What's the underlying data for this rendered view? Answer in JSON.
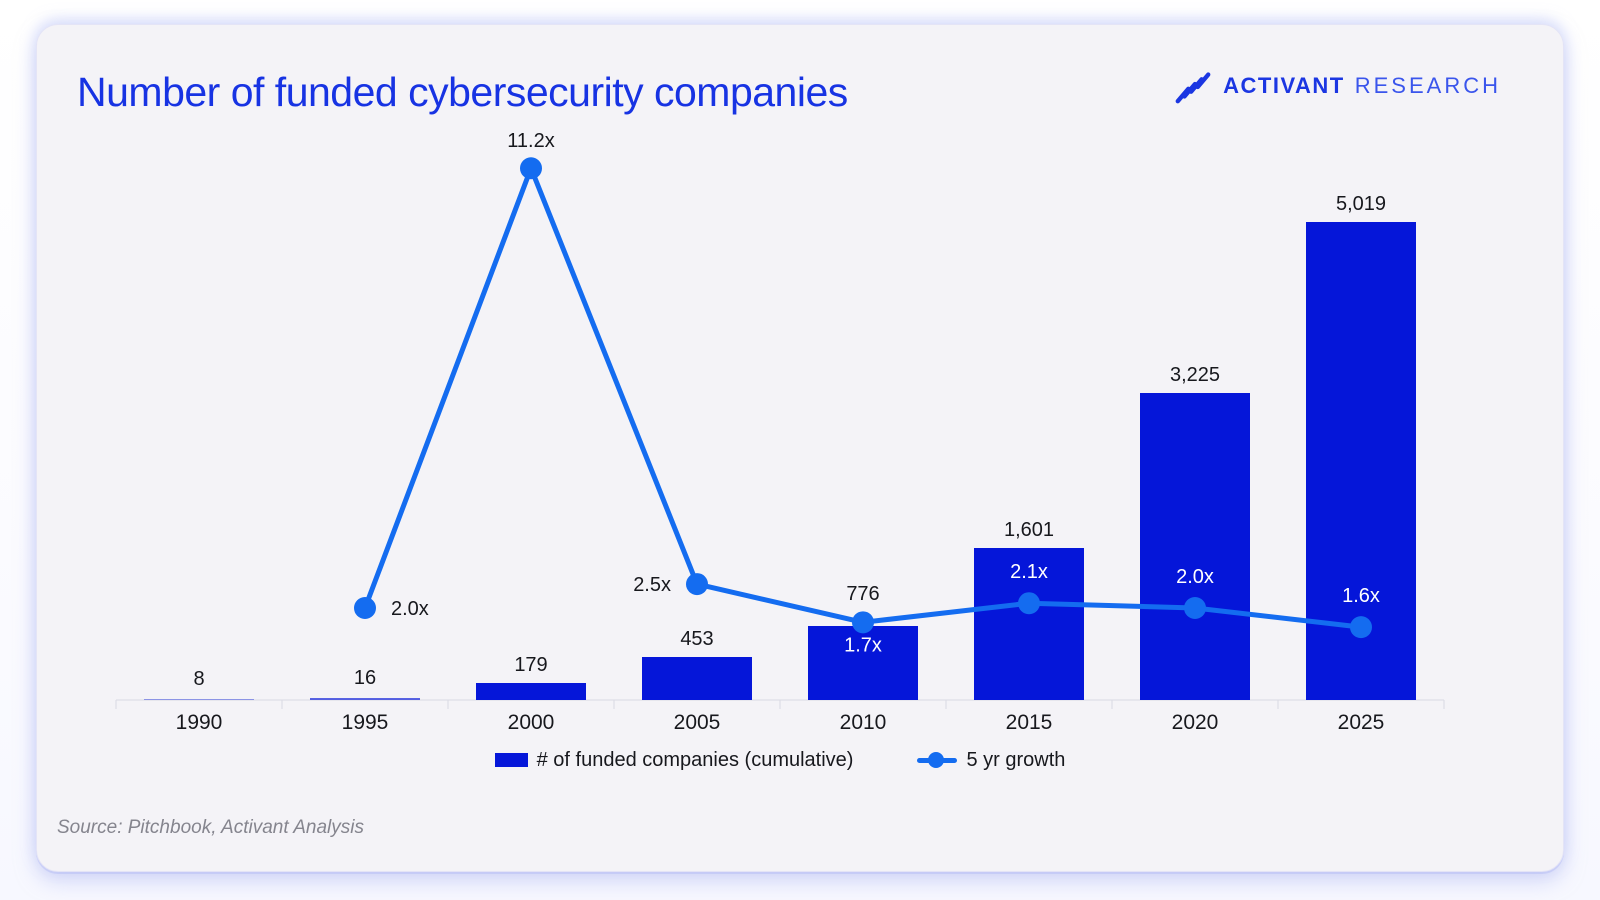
{
  "header": {
    "title": "Number of funded cybersecurity companies"
  },
  "brand": {
    "icon": "activant-logo-icon",
    "primary": "ACTIVANT",
    "secondary": "RESEARCH"
  },
  "chart_data": {
    "type": "bar+line",
    "title": "Number of funded cybersecurity companies",
    "categories": [
      "1990",
      "1995",
      "2000",
      "2005",
      "2010",
      "2015",
      "2020",
      "2025"
    ],
    "series": [
      {
        "name": "# of funded companies (cumulative)",
        "type": "bar",
        "values": [
          8,
          16,
          179,
          453,
          776,
          1601,
          3225,
          5019
        ],
        "labels": [
          "8",
          "16",
          "179",
          "453",
          "776",
          "1,601",
          "3,225",
          "5,019"
        ],
        "color": "#0516d9",
        "value_label_dy": [
          14,
          14,
          12,
          12,
          26,
          12,
          12,
          12
        ]
      },
      {
        "name": "5 yr growth",
        "type": "line",
        "values": [
          null,
          2.0,
          11.2,
          2.5,
          1.7,
          2.1,
          2.0,
          1.6
        ],
        "labels": [
          null,
          "2.0x",
          "11.2x",
          "2.5x",
          "1.7x",
          "2.1x",
          "2.0x",
          "1.6x"
        ],
        "color": "#146cf0",
        "label_placement": [
          null,
          "right",
          "above",
          "left",
          "below-inside",
          "above-inside",
          "above-inside",
          "above-inside"
        ]
      }
    ],
    "xlabel": "",
    "ylabel": "",
    "ylim": [
      0,
      5100
    ],
    "grid": false,
    "y_axis_visible": false,
    "legend_position": "bottom",
    "label_color_outside": "#17181d",
    "label_color_inside": "#ffffff",
    "axis_color": "#d9dae3"
  },
  "footer": {
    "source": "Source: Pitchbook, Activant Analysis"
  }
}
